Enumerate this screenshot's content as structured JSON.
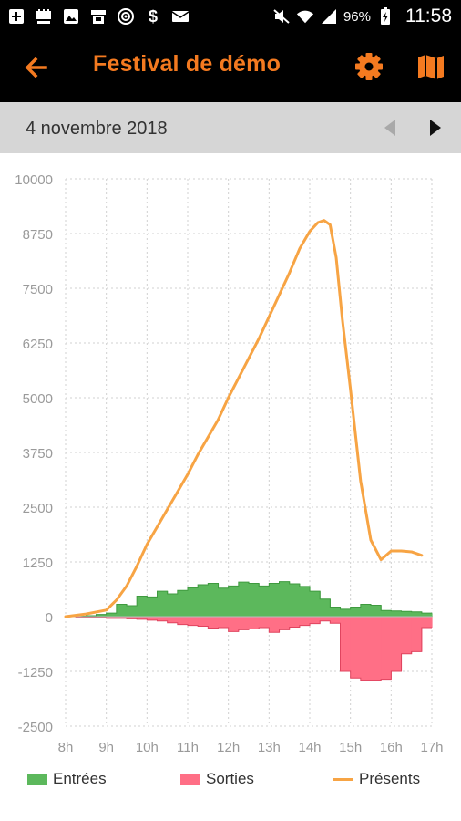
{
  "status_bar": {
    "battery_percent": "96%",
    "time": "11:58",
    "left_icons": [
      "add-box-icon",
      "app-notification-icon",
      "image-icon",
      "app-notification-icon",
      "target-icon",
      "dollar-icon",
      "mail-icon"
    ],
    "right_icons": [
      "mute-icon",
      "wifi-icon",
      "signal-icon",
      "battery-icon"
    ]
  },
  "toolbar": {
    "title": "Festival de démo",
    "back_icon": "arrow-left-icon",
    "settings_icon": "gear-icon",
    "map_icon": "map-icon",
    "accent_color": "#f47a20"
  },
  "date_nav": {
    "date": "4 novembre 2018",
    "prev_enabled": false,
    "next_enabled": true
  },
  "chart_data": {
    "type": "area",
    "ylim": [
      -2500,
      10000
    ],
    "yticks": [
      "10000",
      "8750",
      "7500",
      "6250",
      "5000",
      "3750",
      "2500",
      "1250",
      "0",
      "-1250",
      "-2500"
    ],
    "xticks": [
      "8h",
      "9h",
      "10h",
      "11h",
      "12h",
      "13h",
      "14h",
      "15h",
      "16h",
      "17h"
    ],
    "xlim": [
      8,
      17
    ],
    "grid": true,
    "legend_position": "bottom",
    "series": [
      {
        "name": "Entrées",
        "kind": "step-area",
        "color": "#5cb85c",
        "x": [
          8,
          8.25,
          8.5,
          8.75,
          9,
          9.25,
          9.5,
          9.75,
          10,
          10.25,
          10.5,
          10.75,
          11,
          11.25,
          11.5,
          11.75,
          12,
          12.25,
          12.5,
          12.75,
          13,
          13.25,
          13.5,
          13.75,
          14,
          14.25,
          14.5,
          14.75,
          15,
          15.25,
          15.5,
          15.75,
          16,
          16.25,
          16.5,
          16.75
        ],
        "values": [
          0,
          10,
          20,
          50,
          80,
          280,
          250,
          470,
          450,
          580,
          520,
          600,
          660,
          730,
          760,
          650,
          700,
          790,
          760,
          700,
          760,
          800,
          750,
          690,
          580,
          400,
          220,
          170,
          220,
          280,
          260,
          140,
          130,
          120,
          110,
          80
        ]
      },
      {
        "name": "Sorties",
        "kind": "step-area",
        "color": "#ff6f86",
        "x": [
          8,
          8.25,
          8.5,
          8.75,
          9,
          9.25,
          9.5,
          9.75,
          10,
          10.25,
          10.5,
          10.75,
          11,
          11.25,
          11.5,
          11.75,
          12,
          12.25,
          12.5,
          12.75,
          13,
          13.25,
          13.5,
          13.75,
          14,
          14.25,
          14.5,
          14.75,
          15,
          15.25,
          15.5,
          15.75,
          16,
          16.25,
          16.5,
          16.75
        ],
        "values": [
          0,
          -10,
          -20,
          -20,
          -40,
          -40,
          -50,
          -60,
          -80,
          -100,
          -140,
          -180,
          -200,
          -220,
          -260,
          -250,
          -340,
          -300,
          -280,
          -250,
          -360,
          -300,
          -240,
          -200,
          -160,
          -100,
          -150,
          -1250,
          -1400,
          -1450,
          -1450,
          -1430,
          -1250,
          -850,
          -800,
          -250
        ]
      },
      {
        "name": "Présents",
        "kind": "line",
        "color": "#f7a444",
        "x": [
          8,
          8.5,
          9,
          9.25,
          9.5,
          9.75,
          10,
          10.25,
          10.5,
          10.75,
          11,
          11.25,
          11.5,
          11.75,
          12,
          12.25,
          12.5,
          12.75,
          13,
          13.25,
          13.5,
          13.75,
          14,
          14.2,
          14.35,
          14.5,
          14.65,
          14.8,
          15,
          15.25,
          15.5,
          15.75,
          16,
          16.25,
          16.5,
          16.75
        ],
        "values": [
          0,
          60,
          150,
          380,
          700,
          1150,
          1650,
          2050,
          2450,
          2850,
          3250,
          3700,
          4100,
          4500,
          5000,
          5450,
          5900,
          6350,
          6850,
          7350,
          7850,
          8400,
          8800,
          9000,
          9050,
          8950,
          8200,
          6800,
          5200,
          3100,
          1750,
          1300,
          1500,
          1500,
          1480,
          1400
        ]
      }
    ]
  }
}
